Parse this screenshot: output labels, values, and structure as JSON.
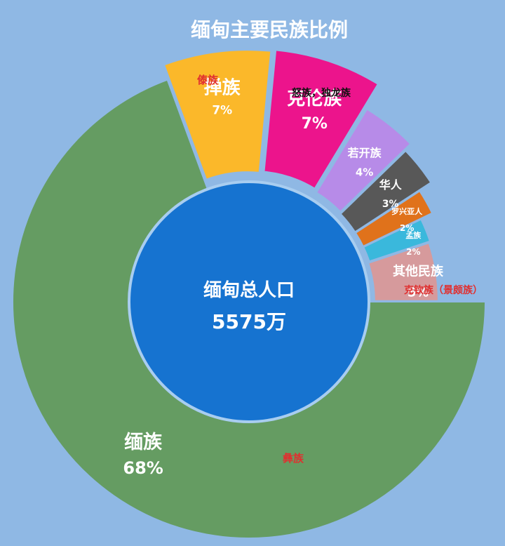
{
  "chart_data": {
    "type": "pie",
    "style": "donut",
    "title": "缅甸主要民族比例",
    "center_label": "缅甸总人口",
    "center_value": "5575万",
    "slices": [
      {
        "name": "缅族",
        "value_label": "68%",
        "value": 68,
        "note": "彝族",
        "color": "#659c62"
      },
      {
        "name": "掸族",
        "value_label": "7%",
        "value": 7,
        "note": "傣族",
        "color": "#fbb82a"
      },
      {
        "name": "克伦族",
        "value_label": "7%",
        "value": 7,
        "note": "怒族，独龙族",
        "color": "#ec148c"
      },
      {
        "name": "若开族",
        "value_label": "4%",
        "value": 4,
        "note": "",
        "color": "#b78be8"
      },
      {
        "name": "华人",
        "value_label": "3%",
        "value": 3,
        "note": "",
        "color": "#585858"
      },
      {
        "name": "罗兴亚人",
        "value_label": "2%",
        "value": 2,
        "note": "",
        "color": "#e0721b"
      },
      {
        "name": "孟族",
        "value_label": "2%",
        "value": 2,
        "note": "",
        "color": "#3ab8dc"
      },
      {
        "name": "其他民族",
        "value_label": "5%",
        "value": 5,
        "note": "克钦族（景颇族）",
        "color": "#d69a9c"
      }
    ],
    "colors": {
      "background": "#8fb8e4",
      "center_fill": "#1673d0",
      "note_red": "#e03030"
    }
  }
}
